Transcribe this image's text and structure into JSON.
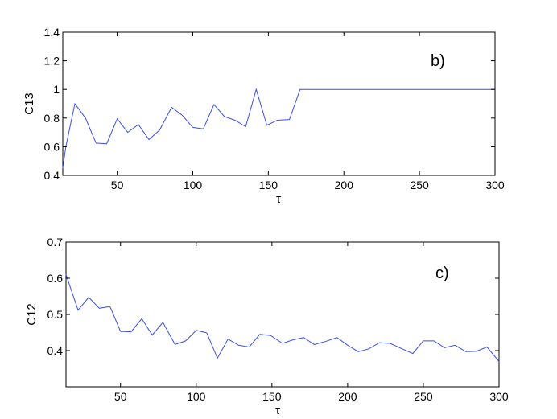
{
  "colors": {
    "series": "#3a4fe0",
    "axes": "#000000",
    "background": "#ffffff"
  },
  "chart_data": [
    {
      "type": "line",
      "panel_label": "b)",
      "xlabel": "τ",
      "ylabel": "C13",
      "xlim": [
        14,
        300
      ],
      "ylim": [
        0.4,
        1.4
      ],
      "xticks": [
        50,
        100,
        150,
        200,
        250,
        300
      ],
      "yticks": [
        0.4,
        0.6,
        0.8,
        1,
        1.2,
        1.4
      ],
      "xtick_labels": [
        "50",
        "100",
        "150",
        "200",
        "250",
        "300"
      ],
      "ytick_labels": [
        "0.4",
        "0.6",
        "0.8",
        "1",
        "1.2",
        "1.4"
      ],
      "grid": false,
      "series": [
        {
          "color": "#3a4fe0",
          "x": [
            14,
            16,
            22,
            29,
            36,
            43,
            50,
            57,
            64,
            71,
            78,
            86,
            93,
            100,
            107,
            114,
            121,
            128,
            135,
            142,
            149,
            156,
            164,
            171,
            180,
            200,
            220,
            240,
            260,
            280,
            300
          ],
          "y": [
            0.45,
            0.6,
            0.9,
            0.8,
            0.625,
            0.62,
            0.795,
            0.7,
            0.755,
            0.65,
            0.715,
            0.875,
            0.82,
            0.735,
            0.725,
            0.895,
            0.81,
            0.785,
            0.74,
            1.0,
            0.75,
            0.785,
            0.79,
            1.0,
            1.0,
            1.0,
            1.0,
            1.0,
            1.0,
            1.0,
            1.0
          ]
        }
      ]
    },
    {
      "type": "line",
      "panel_label": "c)",
      "xlabel": "τ",
      "ylabel": "C12",
      "xlim": [
        14,
        300
      ],
      "ylim": [
        0.3,
        0.7
      ],
      "xticks": [
        50,
        100,
        150,
        200,
        250,
        300
      ],
      "yticks": [
        0.4,
        0.5,
        0.6,
        0.7
      ],
      "xtick_labels": [
        "50",
        "100",
        "150",
        "200",
        "250",
        "300"
      ],
      "ytick_labels": [
        "0.4",
        "0.5",
        "0.6",
        "0.7"
      ],
      "grid": false,
      "series": [
        {
          "color": "#3a4fe0",
          "x": [
            14,
            22,
            29,
            36,
            43,
            50,
            57,
            64,
            71,
            78,
            86,
            93,
            100,
            107,
            114,
            121,
            128,
            135,
            142,
            149,
            157,
            164,
            171,
            178,
            185,
            193,
            200,
            207,
            214,
            221,
            228,
            235,
            243,
            250,
            257,
            264,
            271,
            278,
            285,
            292,
            300
          ],
          "y": [
            0.61,
            0.512,
            0.547,
            0.517,
            0.522,
            0.453,
            0.452,
            0.488,
            0.443,
            0.478,
            0.417,
            0.427,
            0.456,
            0.449,
            0.379,
            0.432,
            0.415,
            0.41,
            0.445,
            0.442,
            0.42,
            0.43,
            0.436,
            0.417,
            0.425,
            0.436,
            0.415,
            0.397,
            0.405,
            0.422,
            0.42,
            0.407,
            0.392,
            0.427,
            0.427,
            0.408,
            0.415,
            0.397,
            0.398,
            0.41,
            0.37
          ]
        }
      ]
    }
  ]
}
